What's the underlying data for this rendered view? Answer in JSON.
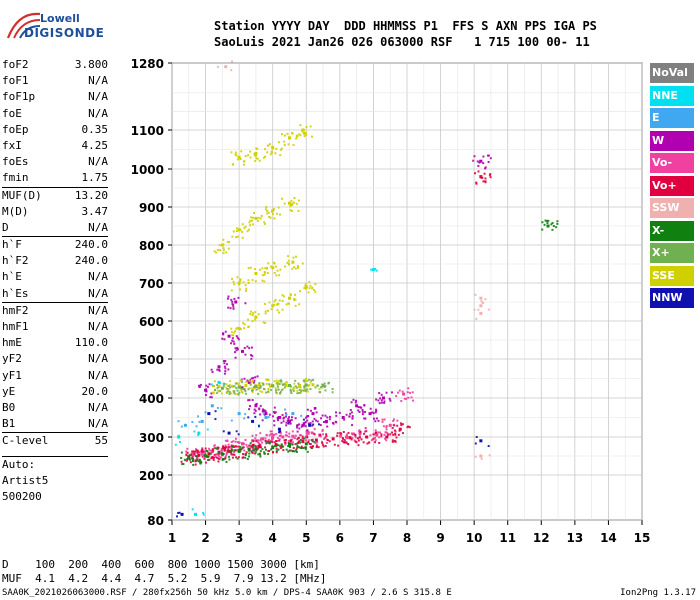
{
  "logo": {
    "line1": "Lowell",
    "line2": "DIGISONDE"
  },
  "header": {
    "labels": "Station YYYY DAY  DDD HHMMSS P1  FFS S AXN PPS IGA PS",
    "values": "SaoLuis 2021 Jan26 026 063000 RSF   1 715 100 00- 11"
  },
  "params": {
    "group1": [
      {
        "label": "foF2",
        "value": "3.800"
      },
      {
        "label": "foF1",
        "value": "N/A"
      },
      {
        "label": "foF1p",
        "value": "N/A"
      },
      {
        "label": "foE",
        "value": "N/A"
      },
      {
        "label": "foEp",
        "value": "0.35"
      },
      {
        "label": "fxI",
        "value": "4.25"
      },
      {
        "label": "foEs",
        "value": "N/A"
      },
      {
        "label": "fmin",
        "value": "1.75"
      }
    ],
    "group2": [
      {
        "label": "MUF(D)",
        "value": "13.20"
      },
      {
        "label": "M(D)",
        "value": "3.47"
      },
      {
        "label": "D",
        "value": "N/A"
      }
    ],
    "group3": [
      {
        "label": "h`F",
        "value": "240.0"
      },
      {
        "label": "h`F2",
        "value": "240.0"
      },
      {
        "label": "h`E",
        "value": "N/A"
      },
      {
        "label": "h`Es",
        "value": "N/A"
      }
    ],
    "group4": [
      {
        "label": "hmF2",
        "value": "N/A"
      },
      {
        "label": "hmF1",
        "value": "N/A"
      },
      {
        "label": "hmE",
        "value": "110.0"
      },
      {
        "label": "yF2",
        "value": "N/A"
      },
      {
        "label": "yF1",
        "value": "N/A"
      },
      {
        "label": "yE",
        "value": "20.0"
      },
      {
        "label": "B0",
        "value": "N/A"
      },
      {
        "label": "B1",
        "value": "N/A"
      }
    ],
    "group5": [
      {
        "label": "C-level",
        "value": "55"
      }
    ],
    "auto": [
      "Auto:",
      "Artist5",
      "500200"
    ]
  },
  "legend": [
    {
      "label": "NoVal",
      "color": "#808080"
    },
    {
      "label": "NNE",
      "color": "#00e0f0"
    },
    {
      "label": "E",
      "color": "#40a8f0"
    },
    {
      "label": "W",
      "color": "#b000b0"
    },
    {
      "label": "Vo-",
      "color": "#f040a0"
    },
    {
      "label": "Vo+",
      "color": "#e00040"
    },
    {
      "label": "SSW",
      "color": "#f0b0b0"
    },
    {
      "label": "X-",
      "color": "#108010"
    },
    {
      "label": "X+",
      "color": "#70b050"
    },
    {
      "label": "SSE",
      "color": "#d0d000"
    },
    {
      "label": "NNW",
      "color": "#1010b0"
    }
  ],
  "bottom": {
    "line1": "D    100  200  400  600  800 1000 1500 3000 [km]",
    "line2": "MUF  4.1  4.2  4.4  4.7  5.2  5.9  7.9 13.2 [MHz]"
  },
  "footer": {
    "left": "SAA0K_2021026063000.RSF / 280fx256h 50 kHz 5.0 km / DPS-4 SAA0K 903 / 2.6 S 315.8 E",
    "right": "Ion2Png 1.3.17"
  },
  "chart_data": {
    "type": "scatter",
    "title": "",
    "xlabel": "",
    "ylabel": "",
    "xlim": [
      1,
      15
    ],
    "ylim": [
      80,
      1280
    ],
    "x_ticks": [
      1,
      2,
      3,
      4,
      5,
      6,
      7,
      8,
      9,
      10,
      11,
      12,
      13,
      14,
      15
    ],
    "y_ticks": [
      80,
      200,
      300,
      400,
      500,
      600,
      700,
      800,
      900,
      1000,
      1100,
      1280
    ],
    "grid": true,
    "legend_position": "right",
    "series": [
      {
        "name": "Vo-",
        "points": [
          [
            1.6,
            255
          ],
          [
            1.9,
            258
          ],
          [
            2.2,
            262
          ],
          [
            2.5,
            268
          ],
          [
            2.8,
            275
          ],
          [
            3.1,
            282
          ],
          [
            3.4,
            290
          ],
          [
            3.7,
            295
          ],
          [
            4.0,
            300
          ],
          [
            4.3,
            300
          ],
          [
            4.6,
            302
          ],
          [
            5.0,
            300
          ],
          [
            5.4,
            305
          ],
          [
            6.2,
            300
          ],
          [
            6.6,
            310
          ],
          [
            7.1,
            305
          ],
          [
            7.5,
            330
          ],
          [
            7.9,
            410
          ]
        ]
      },
      {
        "name": "Vo+",
        "points": [
          [
            1.5,
            248
          ],
          [
            1.8,
            252
          ],
          [
            2.1,
            256
          ],
          [
            2.4,
            260
          ],
          [
            2.7,
            262
          ],
          [
            3.0,
            265
          ],
          [
            3.3,
            268
          ],
          [
            3.6,
            275
          ],
          [
            4.1,
            280
          ],
          [
            4.5,
            282
          ],
          [
            4.9,
            288
          ],
          [
            5.3,
            292
          ],
          [
            5.8,
            295
          ],
          [
            6.3,
            298
          ],
          [
            6.8,
            300
          ],
          [
            7.4,
            300
          ],
          [
            7.8,
            320
          ],
          [
            10.2,
            980
          ]
        ]
      },
      {
        "name": "W",
        "points": [
          [
            2.0,
            420
          ],
          [
            2.4,
            480
          ],
          [
            2.7,
            560
          ],
          [
            2.9,
            650
          ],
          [
            3.1,
            520
          ],
          [
            3.3,
            440
          ],
          [
            3.5,
            380
          ],
          [
            3.8,
            360
          ],
          [
            4.2,
            350
          ],
          [
            4.5,
            340
          ],
          [
            4.9,
            330
          ],
          [
            5.2,
            360
          ],
          [
            5.6,
            340
          ],
          [
            6.1,
            350
          ],
          [
            6.5,
            380
          ],
          [
            6.9,
            360
          ],
          [
            7.3,
            400
          ],
          [
            10.2,
            1020
          ]
        ]
      },
      {
        "name": "SSE",
        "points": [
          [
            2.4,
            430
          ],
          [
            2.8,
            430
          ],
          [
            3.2,
            432
          ],
          [
            3.6,
            433
          ],
          [
            4.0,
            432
          ],
          [
            4.4,
            432
          ],
          [
            4.8,
            432
          ],
          [
            5.2,
            434
          ],
          [
            3.0,
            580
          ],
          [
            3.5,
            610
          ],
          [
            4.0,
            640
          ],
          [
            4.5,
            660
          ],
          [
            5.0,
            690
          ],
          [
            3.0,
            700
          ],
          [
            3.5,
            725
          ],
          [
            4.0,
            740
          ],
          [
            4.6,
            755
          ],
          [
            2.5,
            800
          ],
          [
            3.0,
            840
          ],
          [
            3.5,
            870
          ],
          [
            4.0,
            890
          ],
          [
            4.5,
            910
          ],
          [
            3.0,
            1030
          ],
          [
            3.5,
            1040
          ],
          [
            4.0,
            1055
          ],
          [
            4.5,
            1080
          ],
          [
            4.9,
            1100
          ]
        ]
      },
      {
        "name": "X-",
        "points": [
          [
            1.5,
            245
          ],
          [
            2.0,
            250
          ],
          [
            2.5,
            255
          ],
          [
            3.0,
            262
          ],
          [
            3.5,
            268
          ],
          [
            4.0,
            272
          ],
          [
            4.5,
            278
          ],
          [
            5.0,
            282
          ],
          [
            12.2,
            850
          ]
        ]
      },
      {
        "name": "X+",
        "points": [
          [
            2.5,
            425
          ],
          [
            3.0,
            428
          ],
          [
            3.5,
            430
          ],
          [
            4.0,
            431
          ],
          [
            4.5,
            432
          ],
          [
            5.0,
            433
          ],
          [
            5.5,
            432
          ]
        ]
      },
      {
        "name": "SSW",
        "points": [
          [
            10.2,
            640
          ],
          [
            10.2,
            660
          ],
          [
            10.2,
            620
          ],
          [
            2.6,
            1270
          ],
          [
            10.2,
            250
          ]
        ]
      },
      {
        "name": "NNE",
        "points": [
          [
            1.2,
            300
          ],
          [
            1.8,
            310
          ],
          [
            7.0,
            735
          ],
          [
            1.7,
            95
          ],
          [
            2.4,
            440
          ]
        ]
      },
      {
        "name": "E",
        "points": [
          [
            1.4,
            330
          ],
          [
            1.9,
            340
          ],
          [
            2.2,
            380
          ],
          [
            3.0,
            360
          ],
          [
            3.8,
            350
          ],
          [
            4.6,
            360
          ]
        ]
      },
      {
        "name": "NNW",
        "points": [
          [
            1.3,
            95
          ],
          [
            2.1,
            360
          ],
          [
            2.7,
            310
          ],
          [
            3.4,
            340
          ],
          [
            4.2,
            320
          ],
          [
            5.1,
            330
          ],
          [
            10.2,
            290
          ]
        ]
      }
    ]
  }
}
